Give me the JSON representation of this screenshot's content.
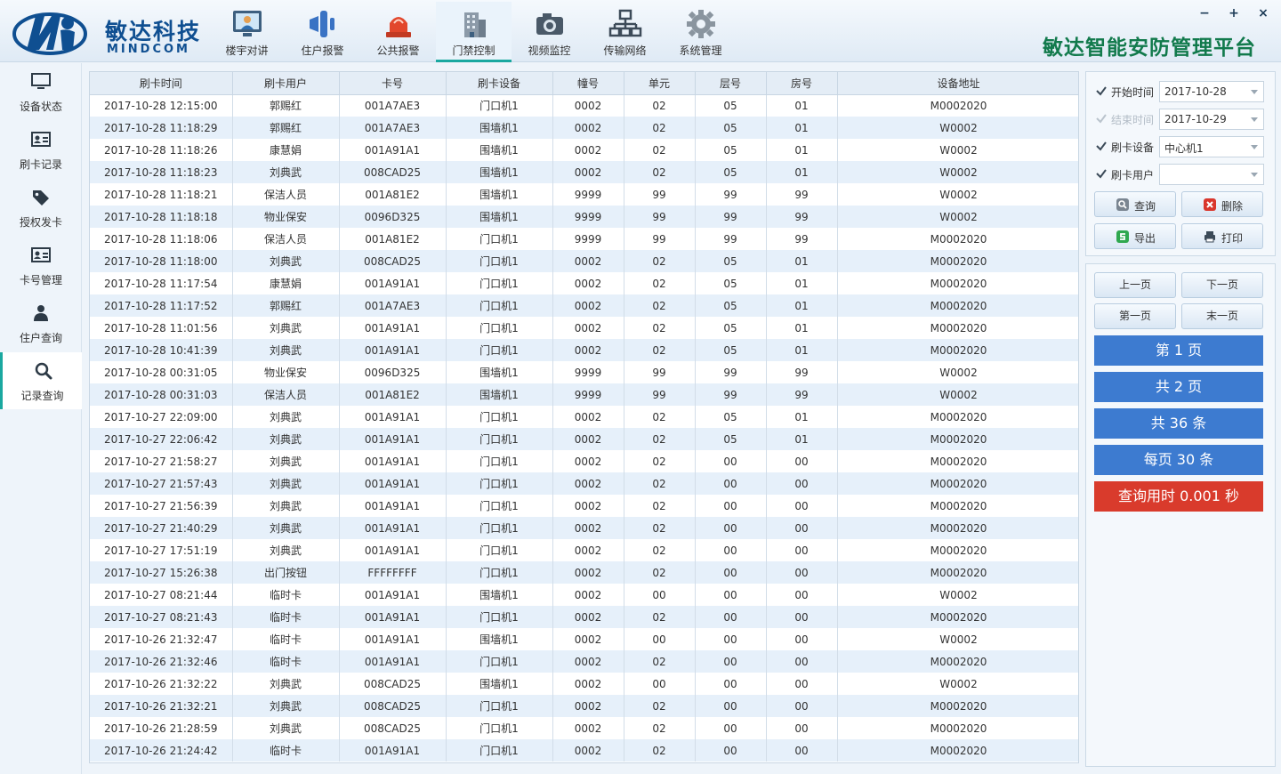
{
  "brand": {
    "name_cn": "敏达科技",
    "name_en": "MINDCOM"
  },
  "app_title": "敏达智能安防管理平台",
  "window_controls": {
    "minimize": "−",
    "maximize": "+",
    "close": "×"
  },
  "nav": [
    {
      "label": "楼宇对讲",
      "icon": "intercom-monitor-icon"
    },
    {
      "label": "住户报警",
      "icon": "alarm-speaker-icon"
    },
    {
      "label": "公共报警",
      "icon": "siren-light-icon"
    },
    {
      "label": "门禁控制",
      "icon": "building-access-icon",
      "active": true
    },
    {
      "label": "视频监控",
      "icon": "camera-icon"
    },
    {
      "label": "传输网络",
      "icon": "network-icon"
    },
    {
      "label": "系统管理",
      "icon": "gear-icon"
    }
  ],
  "sidebar": [
    {
      "label": "设备状态",
      "icon": "monitor-icon"
    },
    {
      "label": "刷卡记录",
      "icon": "id-card-icon"
    },
    {
      "label": "授权发卡",
      "icon": "tag-icon"
    },
    {
      "label": "卡号管理",
      "icon": "id-card-icon"
    },
    {
      "label": "住户查询",
      "icon": "user-icon"
    },
    {
      "label": "记录查询",
      "icon": "search-icon",
      "active": true
    }
  ],
  "table": {
    "columns": [
      "刷卡时间",
      "刷卡用户",
      "卡号",
      "刷卡设备",
      "幢号",
      "单元",
      "层号",
      "房号",
      "设备地址"
    ],
    "rows": [
      [
        "2017-10-28 12:15:00",
        "郭赐红",
        "001A7AE3",
        "门口机1",
        "0002",
        "02",
        "05",
        "01",
        "M0002020"
      ],
      [
        "2017-10-28 11:18:29",
        "郭赐红",
        "001A7AE3",
        "围墙机1",
        "0002",
        "02",
        "05",
        "01",
        "W0002"
      ],
      [
        "2017-10-28 11:18:26",
        "康慧娟",
        "001A91A1",
        "围墙机1",
        "0002",
        "02",
        "05",
        "01",
        "W0002"
      ],
      [
        "2017-10-28 11:18:23",
        "刘典武",
        "008CAD25",
        "围墙机1",
        "0002",
        "02",
        "05",
        "01",
        "W0002"
      ],
      [
        "2017-10-28 11:18:21",
        "保洁人员",
        "001A81E2",
        "围墙机1",
        "9999",
        "99",
        "99",
        "99",
        "W0002"
      ],
      [
        "2017-10-28 11:18:18",
        "物业保安",
        "0096D325",
        "围墙机1",
        "9999",
        "99",
        "99",
        "99",
        "W0002"
      ],
      [
        "2017-10-28 11:18:06",
        "保洁人员",
        "001A81E2",
        "门口机1",
        "9999",
        "99",
        "99",
        "99",
        "M0002020"
      ],
      [
        "2017-10-28 11:18:00",
        "刘典武",
        "008CAD25",
        "门口机1",
        "0002",
        "02",
        "05",
        "01",
        "M0002020"
      ],
      [
        "2017-10-28 11:17:54",
        "康慧娟",
        "001A91A1",
        "门口机1",
        "0002",
        "02",
        "05",
        "01",
        "M0002020"
      ],
      [
        "2017-10-28 11:17:52",
        "郭赐红",
        "001A7AE3",
        "门口机1",
        "0002",
        "02",
        "05",
        "01",
        "M0002020"
      ],
      [
        "2017-10-28 11:01:56",
        "刘典武",
        "001A91A1",
        "门口机1",
        "0002",
        "02",
        "05",
        "01",
        "M0002020"
      ],
      [
        "2017-10-28 10:41:39",
        "刘典武",
        "001A91A1",
        "门口机1",
        "0002",
        "02",
        "05",
        "01",
        "M0002020"
      ],
      [
        "2017-10-28 00:31:05",
        "物业保安",
        "0096D325",
        "围墙机1",
        "9999",
        "99",
        "99",
        "99",
        "W0002"
      ],
      [
        "2017-10-28 00:31:03",
        "保洁人员",
        "001A81E2",
        "围墙机1",
        "9999",
        "99",
        "99",
        "99",
        "W0002"
      ],
      [
        "2017-10-27 22:09:00",
        "刘典武",
        "001A91A1",
        "门口机1",
        "0002",
        "02",
        "05",
        "01",
        "M0002020"
      ],
      [
        "2017-10-27 22:06:42",
        "刘典武",
        "001A91A1",
        "门口机1",
        "0002",
        "02",
        "05",
        "01",
        "M0002020"
      ],
      [
        "2017-10-27 21:58:27",
        "刘典武",
        "001A91A1",
        "门口机1",
        "0002",
        "02",
        "00",
        "00",
        "M0002020"
      ],
      [
        "2017-10-27 21:57:43",
        "刘典武",
        "001A91A1",
        "门口机1",
        "0002",
        "02",
        "00",
        "00",
        "M0002020"
      ],
      [
        "2017-10-27 21:56:39",
        "刘典武",
        "001A91A1",
        "门口机1",
        "0002",
        "02",
        "00",
        "00",
        "M0002020"
      ],
      [
        "2017-10-27 21:40:29",
        "刘典武",
        "001A91A1",
        "门口机1",
        "0002",
        "02",
        "00",
        "00",
        "M0002020"
      ],
      [
        "2017-10-27 17:51:19",
        "刘典武",
        "001A91A1",
        "门口机1",
        "0002",
        "02",
        "00",
        "00",
        "M0002020"
      ],
      [
        "2017-10-27 15:26:38",
        "出门按钮",
        "FFFFFFFF",
        "门口机1",
        "0002",
        "02",
        "00",
        "00",
        "M0002020"
      ],
      [
        "2017-10-27 08:21:44",
        "临时卡",
        "001A91A1",
        "围墙机1",
        "0002",
        "00",
        "00",
        "00",
        "W0002"
      ],
      [
        "2017-10-27 08:21:43",
        "临时卡",
        "001A91A1",
        "门口机1",
        "0002",
        "02",
        "00",
        "00",
        "M0002020"
      ],
      [
        "2017-10-26 21:32:47",
        "临时卡",
        "001A91A1",
        "围墙机1",
        "0002",
        "00",
        "00",
        "00",
        "W0002"
      ],
      [
        "2017-10-26 21:32:46",
        "临时卡",
        "001A91A1",
        "门口机1",
        "0002",
        "02",
        "00",
        "00",
        "M0002020"
      ],
      [
        "2017-10-26 21:32:22",
        "刘典武",
        "008CAD25",
        "围墙机1",
        "0002",
        "00",
        "00",
        "00",
        "W0002"
      ],
      [
        "2017-10-26 21:32:21",
        "刘典武",
        "008CAD25",
        "门口机1",
        "0002",
        "02",
        "00",
        "00",
        "M0002020"
      ],
      [
        "2017-10-26 21:28:59",
        "刘典武",
        "008CAD25",
        "门口机1",
        "0002",
        "02",
        "00",
        "00",
        "M0002020"
      ],
      [
        "2017-10-26 21:24:42",
        "临时卡",
        "001A91A1",
        "门口机1",
        "0002",
        "02",
        "00",
        "00",
        "M0002020"
      ]
    ]
  },
  "filters": {
    "start": {
      "label": "开始时间",
      "value": "2017-10-28",
      "checked": true
    },
    "end": {
      "label": "结束时间",
      "value": "2017-10-29",
      "checked": true,
      "disabled": true
    },
    "device": {
      "label": "刷卡设备",
      "value": "中心机1",
      "checked": true
    },
    "user": {
      "label": "刷卡用户",
      "value": "",
      "checked": true
    }
  },
  "actions": {
    "query": "查询",
    "delete": "删除",
    "export": "导出",
    "print": "打印"
  },
  "pager": {
    "prev": "上一页",
    "next": "下一页",
    "first": "第一页",
    "last": "末一页",
    "current_page": "第 1 页",
    "total_pages": "共 2 页",
    "total_records": "共 36 条",
    "per_page": "每页 30 条",
    "query_time": "查询用时 0.001 秒"
  },
  "colors": {
    "accent_teal": "#1aa8a0",
    "info_blue": "#3d7bd0",
    "info_red": "#d93b2c",
    "title_green": "#127a4c",
    "brand_blue": "#0f4f91"
  }
}
